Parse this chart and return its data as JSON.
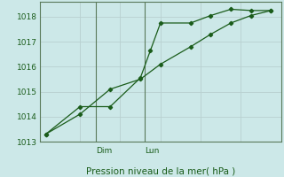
{
  "title": "Pression niveau de la mer( hPa )",
  "bg_color": "#cce8e8",
  "grid_color": "#b8d0d0",
  "line_color": "#1a5c1a",
  "border_color": "#4a7a4a",
  "spine_color": "#5a7a5a",
  "ylim": [
    1013.0,
    1018.6
  ],
  "yticks": [
    1013,
    1014,
    1015,
    1016,
    1017,
    1018
  ],
  "xlim": [
    0,
    12
  ],
  "series1_x": [
    0.3,
    2.0,
    3.5,
    5.0,
    5.5,
    6.0,
    7.5,
    8.5,
    9.5,
    10.5,
    11.5
  ],
  "series1_y": [
    1013.3,
    1014.4,
    1014.4,
    1015.55,
    1016.65,
    1017.75,
    1017.75,
    1018.05,
    1018.3,
    1018.25,
    1018.25
  ],
  "series2_x": [
    0.3,
    2.0,
    3.5,
    5.0,
    6.0,
    7.5,
    8.5,
    9.5,
    10.5,
    11.5
  ],
  "series2_y": [
    1013.3,
    1014.1,
    1015.1,
    1015.5,
    1016.1,
    1016.8,
    1017.3,
    1017.75,
    1018.05,
    1018.25
  ],
  "dim_x": 2.8,
  "lun_x": 5.2,
  "day_labels": [
    "Dim",
    "Lun"
  ],
  "day_positions": [
    2.8,
    5.2
  ],
  "tick_fontsize": 6.5,
  "label_fontsize": 7.5
}
